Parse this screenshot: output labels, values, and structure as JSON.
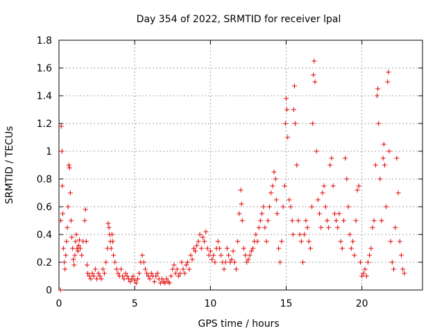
{
  "chart_data": {
    "type": "scatter",
    "title": "Day 354 of 2022, SRMTID for receiver lpal",
    "xlabel": "GPS time / hours",
    "ylabel": "SRMTID / TECUs",
    "xlim": [
      0,
      24
    ],
    "ylim": [
      0,
      1.8
    ],
    "x_ticks": [
      0,
      5,
      10,
      15,
      20
    ],
    "x_tick_labels": [
      "0",
      "5",
      "10",
      "15",
      "20"
    ],
    "y_ticks": [
      0,
      0.2,
      0.4,
      0.6,
      0.8,
      1.0,
      1.2,
      1.4,
      1.6,
      1.8
    ],
    "y_tick_labels": [
      "0",
      "0.2",
      "0.4",
      "0.6",
      "0.8",
      "1",
      "1.2",
      "1.4",
      "1.6",
      "1.8"
    ],
    "grid": true,
    "marker": "+",
    "marker_color": "#e00000",
    "series": [
      {
        "name": "SRMTID",
        "points": [
          [
            0.1,
            0.0
          ],
          [
            0.12,
            0.5
          ],
          [
            0.15,
            1.18
          ],
          [
            0.2,
            1.0
          ],
          [
            0.22,
            0.75
          ],
          [
            0.25,
            0.55
          ],
          [
            0.3,
            0.3
          ],
          [
            0.35,
            0.2
          ],
          [
            0.4,
            0.15
          ],
          [
            0.45,
            0.25
          ],
          [
            0.5,
            0.35
          ],
          [
            0.55,
            0.45
          ],
          [
            0.6,
            0.6
          ],
          [
            0.65,
            0.9
          ],
          [
            0.7,
            0.88
          ],
          [
            0.75,
            0.7
          ],
          [
            0.8,
            0.5
          ],
          [
            0.85,
            0.38
          ],
          [
            0.9,
            0.3
          ],
          [
            0.95,
            0.22
          ],
          [
            1.0,
            0.18
          ],
          [
            1.05,
            0.25
          ],
          [
            1.1,
            0.35
          ],
          [
            1.15,
            0.4
          ],
          [
            1.2,
            0.3
          ],
          [
            1.25,
            0.28
          ],
          [
            1.3,
            0.32
          ],
          [
            1.35,
            0.36
          ],
          [
            1.4,
            0.3
          ],
          [
            1.5,
            0.25
          ],
          [
            1.6,
            0.35
          ],
          [
            1.7,
            0.5
          ],
          [
            1.75,
            0.58
          ],
          [
            1.8,
            0.35
          ],
          [
            1.85,
            0.18
          ],
          [
            1.9,
            0.12
          ],
          [
            2.0,
            0.1
          ],
          [
            2.1,
            0.08
          ],
          [
            2.2,
            0.12
          ],
          [
            2.3,
            0.1
          ],
          [
            2.4,
            0.15
          ],
          [
            2.5,
            0.08
          ],
          [
            2.6,
            0.12
          ],
          [
            2.7,
            0.1
          ],
          [
            2.8,
            0.08
          ],
          [
            2.9,
            0.15
          ],
          [
            3.0,
            0.12
          ],
          [
            3.1,
            0.2
          ],
          [
            3.2,
            0.3
          ],
          [
            3.25,
            0.48
          ],
          [
            3.3,
            0.45
          ],
          [
            3.35,
            0.4
          ],
          [
            3.4,
            0.35
          ],
          [
            3.45,
            0.3
          ],
          [
            3.5,
            0.4
          ],
          [
            3.55,
            0.35
          ],
          [
            3.6,
            0.25
          ],
          [
            3.7,
            0.2
          ],
          [
            3.8,
            0.15
          ],
          [
            3.9,
            0.12
          ],
          [
            4.0,
            0.1
          ],
          [
            4.1,
            0.15
          ],
          [
            4.2,
            0.1
          ],
          [
            4.3,
            0.08
          ],
          [
            4.4,
            0.12
          ],
          [
            4.5,
            0.1
          ],
          [
            4.6,
            0.08
          ],
          [
            4.7,
            0.06
          ],
          [
            4.8,
            0.08
          ],
          [
            4.9,
            0.1
          ],
          [
            5.0,
            0.07
          ],
          [
            5.1,
            0.05
          ],
          [
            5.2,
            0.08
          ],
          [
            5.3,
            0.12
          ],
          [
            5.4,
            0.2
          ],
          [
            5.5,
            0.25
          ],
          [
            5.6,
            0.2
          ],
          [
            5.7,
            0.15
          ],
          [
            5.8,
            0.12
          ],
          [
            5.9,
            0.1
          ],
          [
            6.0,
            0.08
          ],
          [
            6.1,
            0.12
          ],
          [
            6.2,
            0.1
          ],
          [
            6.3,
            0.06
          ],
          [
            6.4,
            0.1
          ],
          [
            6.5,
            0.12
          ],
          [
            6.6,
            0.08
          ],
          [
            6.7,
            0.05
          ],
          [
            6.8,
            0.08
          ],
          [
            6.9,
            0.06
          ],
          [
            7.0,
            0.05
          ],
          [
            7.1,
            0.08
          ],
          [
            7.2,
            0.06
          ],
          [
            7.3,
            0.05
          ],
          [
            7.4,
            0.1
          ],
          [
            7.5,
            0.15
          ],
          [
            7.6,
            0.18
          ],
          [
            7.7,
            0.12
          ],
          [
            7.8,
            0.15
          ],
          [
            7.9,
            0.1
          ],
          [
            8.0,
            0.12
          ],
          [
            8.1,
            0.2
          ],
          [
            8.2,
            0.15
          ],
          [
            8.3,
            0.12
          ],
          [
            8.4,
            0.18
          ],
          [
            8.5,
            0.2
          ],
          [
            8.6,
            0.15
          ],
          [
            8.7,
            0.25
          ],
          [
            8.8,
            0.22
          ],
          [
            8.9,
            0.3
          ],
          [
            9.0,
            0.28
          ],
          [
            9.1,
            0.32
          ],
          [
            9.2,
            0.35
          ],
          [
            9.3,
            0.4
          ],
          [
            9.4,
            0.3
          ],
          [
            9.5,
            0.38
          ],
          [
            9.6,
            0.35
          ],
          [
            9.7,
            0.42
          ],
          [
            9.8,
            0.3
          ],
          [
            9.9,
            0.25
          ],
          [
            10.0,
            0.28
          ],
          [
            10.1,
            0.22
          ],
          [
            10.2,
            0.25
          ],
          [
            10.3,
            0.2
          ],
          [
            10.4,
            0.3
          ],
          [
            10.5,
            0.35
          ],
          [
            10.6,
            0.3
          ],
          [
            10.7,
            0.25
          ],
          [
            10.8,
            0.2
          ],
          [
            10.9,
            0.15
          ],
          [
            11.0,
            0.2
          ],
          [
            11.1,
            0.3
          ],
          [
            11.2,
            0.25
          ],
          [
            11.3,
            0.2
          ],
          [
            11.4,
            0.22
          ],
          [
            11.5,
            0.28
          ],
          [
            11.6,
            0.2
          ],
          [
            11.7,
            0.15
          ],
          [
            11.8,
            0.35
          ],
          [
            11.9,
            0.55
          ],
          [
            12.0,
            0.72
          ],
          [
            12.05,
            0.62
          ],
          [
            12.1,
            0.5
          ],
          [
            12.2,
            0.3
          ],
          [
            12.3,
            0.25
          ],
          [
            12.4,
            0.2
          ],
          [
            12.5,
            0.22
          ],
          [
            12.6,
            0.25
          ],
          [
            12.7,
            0.28
          ],
          [
            12.8,
            0.3
          ],
          [
            12.9,
            0.35
          ],
          [
            13.0,
            0.4
          ],
          [
            13.1,
            0.35
          ],
          [
            13.2,
            0.45
          ],
          [
            13.3,
            0.5
          ],
          [
            13.4,
            0.55
          ],
          [
            13.5,
            0.6
          ],
          [
            13.6,
            0.45
          ],
          [
            13.7,
            0.35
          ],
          [
            13.8,
            0.5
          ],
          [
            13.9,
            0.6
          ],
          [
            14.0,
            0.7
          ],
          [
            14.1,
            0.75
          ],
          [
            14.2,
            0.85
          ],
          [
            14.3,
            0.8
          ],
          [
            14.35,
            0.65
          ],
          [
            14.4,
            0.55
          ],
          [
            14.5,
            0.3
          ],
          [
            14.6,
            0.2
          ],
          [
            14.7,
            0.35
          ],
          [
            14.8,
            0.6
          ],
          [
            14.9,
            0.75
          ],
          [
            14.95,
            1.2
          ],
          [
            15.0,
            1.38
          ],
          [
            15.05,
            1.3
          ],
          [
            15.1,
            1.1
          ],
          [
            15.2,
            0.65
          ],
          [
            15.3,
            0.6
          ],
          [
            15.4,
            0.5
          ],
          [
            15.45,
            0.4
          ],
          [
            15.5,
            1.3
          ],
          [
            15.55,
            1.47
          ],
          [
            15.6,
            1.2
          ],
          [
            15.7,
            0.9
          ],
          [
            15.8,
            0.5
          ],
          [
            15.9,
            0.4
          ],
          [
            16.0,
            0.35
          ],
          [
            16.1,
            0.2
          ],
          [
            16.2,
            0.4
          ],
          [
            16.3,
            0.5
          ],
          [
            16.4,
            0.45
          ],
          [
            16.5,
            0.35
          ],
          [
            16.6,
            0.3
          ],
          [
            16.7,
            0.6
          ],
          [
            16.75,
            1.2
          ],
          [
            16.8,
            1.55
          ],
          [
            16.85,
            1.65
          ],
          [
            16.9,
            1.5
          ],
          [
            17.0,
            1.0
          ],
          [
            17.1,
            0.65
          ],
          [
            17.2,
            0.55
          ],
          [
            17.3,
            0.45
          ],
          [
            17.4,
            0.7
          ],
          [
            17.5,
            0.75
          ],
          [
            17.6,
            0.6
          ],
          [
            17.7,
            0.5
          ],
          [
            17.8,
            0.45
          ],
          [
            17.9,
            0.9
          ],
          [
            18.0,
            0.95
          ],
          [
            18.1,
            0.75
          ],
          [
            18.2,
            0.55
          ],
          [
            18.3,
            0.5
          ],
          [
            18.4,
            0.45
          ],
          [
            18.5,
            0.55
          ],
          [
            18.6,
            0.35
          ],
          [
            18.7,
            0.3
          ],
          [
            18.8,
            0.5
          ],
          [
            18.9,
            0.95
          ],
          [
            19.0,
            0.8
          ],
          [
            19.1,
            0.6
          ],
          [
            19.2,
            0.4
          ],
          [
            19.3,
            0.3
          ],
          [
            19.4,
            0.35
          ],
          [
            19.5,
            0.25
          ],
          [
            19.6,
            0.5
          ],
          [
            19.7,
            0.72
          ],
          [
            19.8,
            0.75
          ],
          [
            19.9,
            0.2
          ],
          [
            20.0,
            0.1
          ],
          [
            20.1,
            0.12
          ],
          [
            20.2,
            0.15
          ],
          [
            20.3,
            0.1
          ],
          [
            20.4,
            0.2
          ],
          [
            20.5,
            0.25
          ],
          [
            20.6,
            0.3
          ],
          [
            20.7,
            0.45
          ],
          [
            20.8,
            0.5
          ],
          [
            20.9,
            0.9
          ],
          [
            21.0,
            1.4
          ],
          [
            21.05,
            1.45
          ],
          [
            21.1,
            1.2
          ],
          [
            21.2,
            0.8
          ],
          [
            21.3,
            0.5
          ],
          [
            21.4,
            0.95
          ],
          [
            21.45,
            1.05
          ],
          [
            21.5,
            0.9
          ],
          [
            21.6,
            0.6
          ],
          [
            21.7,
            1.5
          ],
          [
            21.75,
            1.57
          ],
          [
            21.8,
            1.0
          ],
          [
            21.9,
            0.35
          ],
          [
            22.0,
            0.2
          ],
          [
            22.1,
            0.15
          ],
          [
            22.2,
            0.45
          ],
          [
            22.3,
            0.95
          ],
          [
            22.4,
            0.7
          ],
          [
            22.5,
            0.35
          ],
          [
            22.6,
            0.25
          ],
          [
            22.7,
            0.15
          ],
          [
            22.8,
            0.12
          ]
        ]
      }
    ]
  }
}
